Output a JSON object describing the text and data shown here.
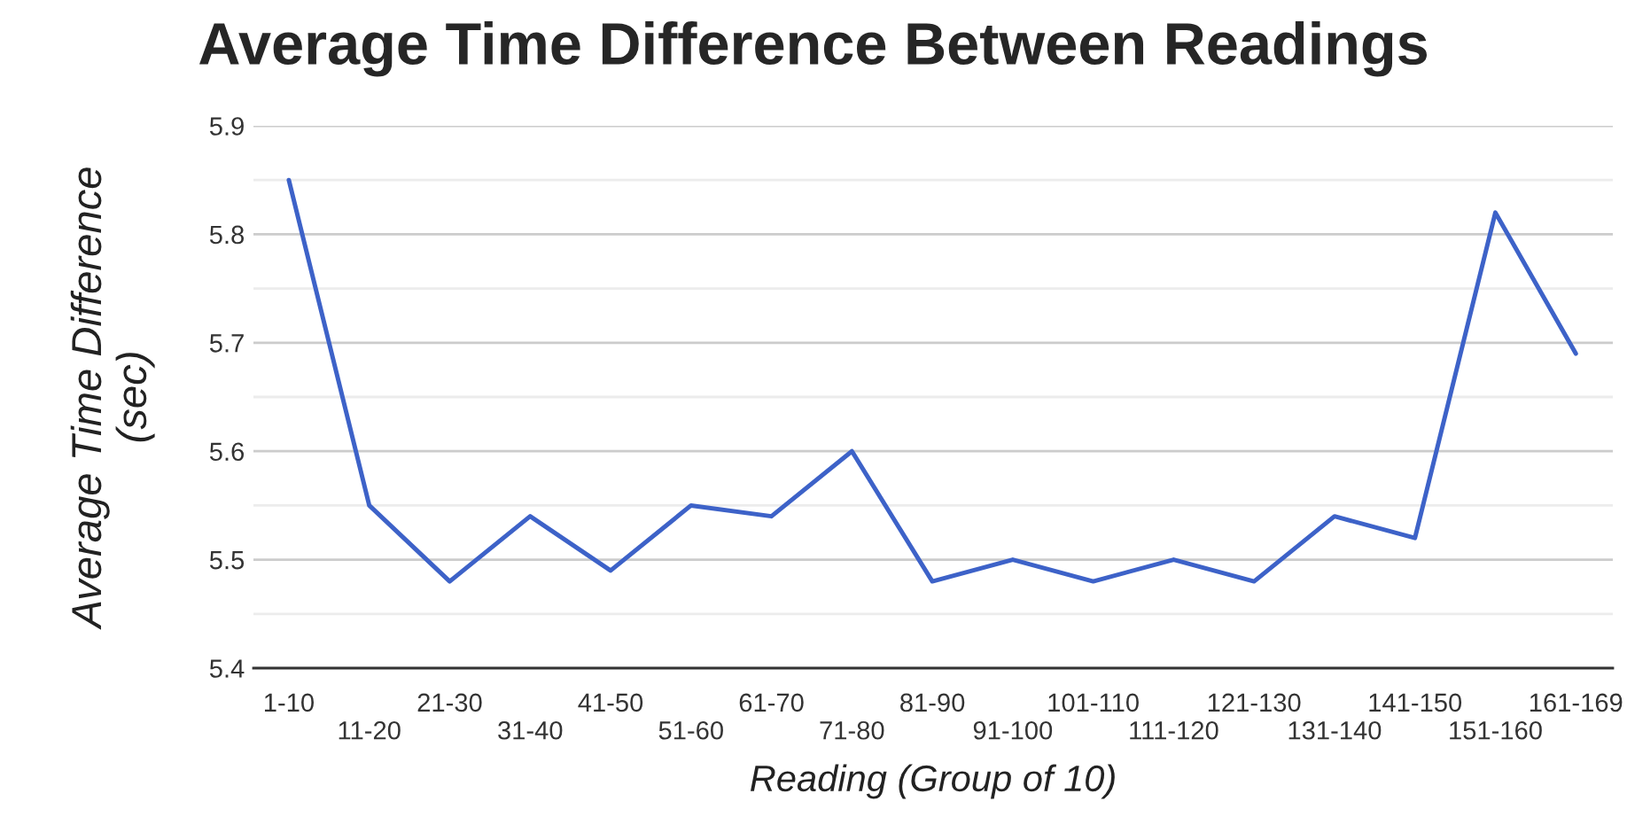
{
  "chart_data": {
    "type": "line",
    "title": "Average Time Difference Between Readings",
    "xlabel": "Reading (Group of 10)",
    "ylabel": "Average Time Difference\n(sec)",
    "categories": [
      "1-10",
      "11-20",
      "21-30",
      "31-40",
      "41-50",
      "51-60",
      "61-70",
      "71-80",
      "81-90",
      "91-100",
      "101-110",
      "111-120",
      "121-130",
      "131-140",
      "141-150",
      "151-160",
      "161-169"
    ],
    "series": [
      {
        "color": "#3d62c8",
        "values": [
          5.85,
          5.55,
          5.48,
          5.54,
          5.49,
          5.55,
          5.54,
          5.6,
          5.48,
          5.5,
          5.48,
          5.5,
          5.48,
          5.54,
          5.52,
          5.82,
          5.69
        ]
      }
    ],
    "ylim": [
      5.4,
      5.9
    ],
    "yticks": [
      5.4,
      {
        "value": 5.45,
        "label": null
      },
      5.5,
      {
        "value": 5.55,
        "label": null
      },
      5.6,
      {
        "value": 5.65,
        "label": null
      },
      5.7,
      {
        "value": 5.75,
        "label": null
      },
      5.8,
      {
        "value": 5.85,
        "label": null
      },
      5.9
    ],
    "grid": "y",
    "legend": false,
    "marker": "none",
    "line_style": "solid"
  }
}
